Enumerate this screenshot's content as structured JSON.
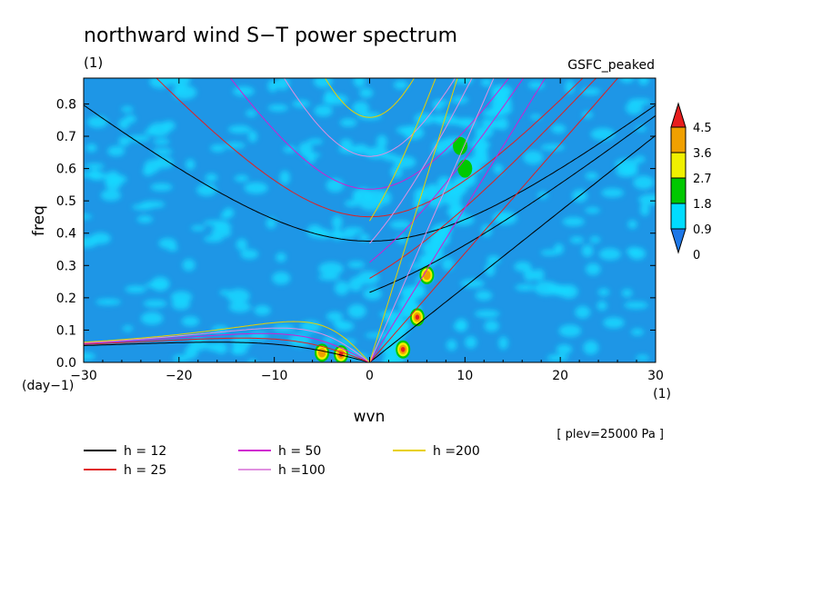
{
  "chart_data": {
    "type": "heatmap",
    "title": "northward wind S−T power spectrum",
    "ylabel": "freq",
    "xlabel": "wvn",
    "yunit": "(1)",
    "yunit_bottom": "(day−1)",
    "xunit": "(1)",
    "dataset_label": "GSFC_peaked",
    "level_label": "[ plev=25000 Pa ]",
    "xlim": [
      -30,
      30
    ],
    "ylim": [
      0,
      0.88
    ],
    "xticks": [
      -30,
      -20,
      -10,
      0,
      10,
      20,
      30
    ],
    "xtick_labels": [
      "−30",
      "−20",
      "−10",
      "0",
      "10",
      "20",
      "30"
    ],
    "yticks": [
      0.0,
      0.1,
      0.2,
      0.3,
      0.4,
      0.5,
      0.6,
      0.7,
      0.8
    ],
    "ytick_labels": [
      "0.0",
      "0.1",
      "0.2",
      "0.3",
      "0.4",
      "0.5",
      "0.6",
      "0.7",
      "0.8"
    ],
    "colorbar": {
      "levels": [
        "4.5",
        "3.6",
        "2.7",
        "1.8",
        "0.9",
        "0"
      ],
      "colors": [
        "#1e78e8",
        "#00dcff",
        "#00c800",
        "#f0f000",
        "#f0a000",
        "#e81e1e"
      ]
    },
    "background_color": "#1e96e6",
    "dispersion_curves": [
      {
        "label": "h = 12",
        "h": 12,
        "color": "#000000"
      },
      {
        "label": "h = 25",
        "h": 25,
        "color": "#e02020"
      },
      {
        "label": "h = 50",
        "h": 50,
        "color": "#d020d0"
      },
      {
        "label": "h =100",
        "h": 100,
        "color": "#e090e0"
      },
      {
        "label": "h =200",
        "h": 200,
        "color": "#e8d000"
      }
    ],
    "peaks": [
      {
        "wvn": 5,
        "freq": 0.14,
        "level": 4.5
      },
      {
        "wvn": 3.5,
        "freq": 0.04,
        "level": 4.5
      },
      {
        "wvn": 6,
        "freq": 0.27,
        "level": 3.6
      },
      {
        "wvn": -3,
        "freq": 0.025,
        "level": 4.5
      },
      {
        "wvn": -5,
        "freq": 0.03,
        "level": 3.6
      },
      {
        "wvn": 9.5,
        "freq": 0.67,
        "level": 1.8
      },
      {
        "wvn": 10,
        "freq": 0.6,
        "level": 1.8
      }
    ]
  }
}
